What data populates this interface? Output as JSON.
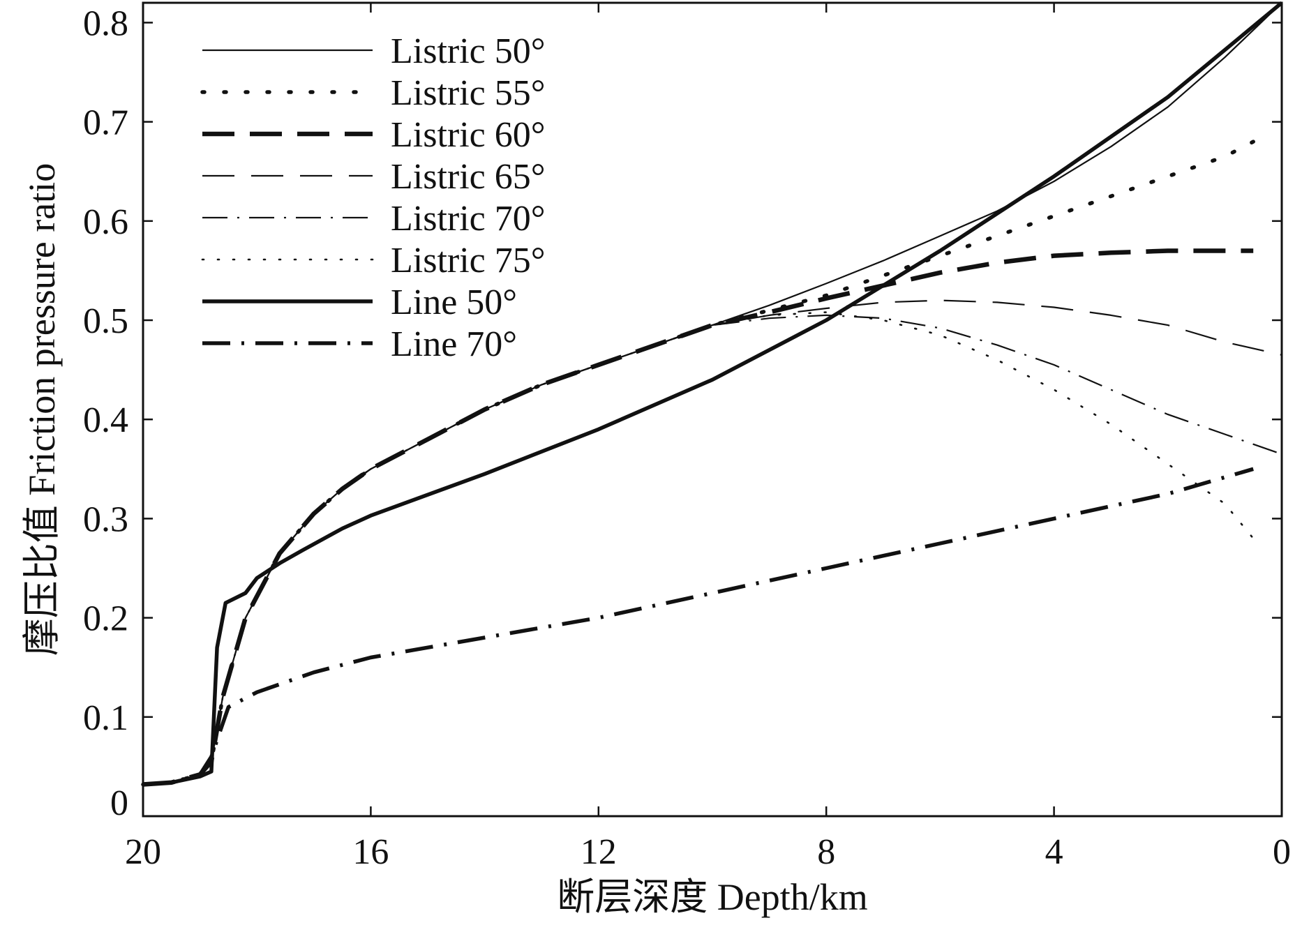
{
  "chart_data": {
    "type": "line",
    "xlabel": "断层深度 Depth/km",
    "ylabel": "摩压比值 Friction pressure ratio",
    "xlim": [
      20,
      0
    ],
    "ylim": [
      0,
      0.82
    ],
    "x_reversed": true,
    "grid": false,
    "legend_position": "top-left",
    "x_ticks": [
      20,
      16,
      12,
      8,
      4,
      0
    ],
    "x_tick_labels": [
      "20",
      "16",
      "12",
      "8",
      "4",
      "0"
    ],
    "y_ticks": [
      0,
      0.1,
      0.2,
      0.3,
      0.4,
      0.5,
      0.6,
      0.7,
      0.8
    ],
    "y_tick_labels": [
      "0",
      "0.1",
      "0.2",
      "0.3",
      "0.4",
      "0.5",
      "0.6",
      "0.7",
      "0.8"
    ],
    "series": [
      {
        "name": "Listric 50°",
        "style": "thin-solid",
        "x": [
          20,
          19.5,
          19.0,
          18.8,
          18.6,
          18.2,
          17.6,
          17.0,
          16.5,
          16.0,
          15.0,
          14.0,
          13.0,
          12.0,
          11.0,
          10.0,
          9.0,
          8.0,
          7.0,
          6.0,
          5.0,
          4.0,
          3.0,
          2.0,
          1.0,
          0.0
        ],
        "y": [
          0.032,
          0.034,
          0.042,
          0.055,
          0.12,
          0.2,
          0.265,
          0.305,
          0.33,
          0.35,
          0.38,
          0.41,
          0.435,
          0.455,
          0.475,
          0.495,
          0.515,
          0.537,
          0.56,
          0.585,
          0.61,
          0.64,
          0.675,
          0.715,
          0.765,
          0.82
        ]
      },
      {
        "name": "Listric 55°",
        "style": "dotted-bold",
        "x": [
          20,
          19.5,
          19.0,
          18.8,
          18.6,
          18.2,
          17.6,
          17.0,
          16.5,
          16.0,
          15.0,
          14.0,
          13.0,
          12.0,
          11.0,
          10.0,
          9.0,
          8.0,
          7.0,
          6.0,
          5.0,
          4.0,
          3.0,
          2.0,
          1.0,
          0.5
        ],
        "y": [
          0.032,
          0.034,
          0.042,
          0.055,
          0.12,
          0.2,
          0.265,
          0.305,
          0.33,
          0.35,
          0.38,
          0.41,
          0.435,
          0.455,
          0.475,
          0.495,
          0.51,
          0.525,
          0.545,
          0.565,
          0.585,
          0.605,
          0.625,
          0.645,
          0.665,
          0.68
        ]
      },
      {
        "name": "Listric 60°",
        "style": "dashed-bold",
        "x": [
          20,
          19.5,
          19.0,
          18.8,
          18.6,
          18.2,
          17.6,
          17.0,
          16.5,
          16.0,
          15.0,
          14.0,
          13.0,
          12.0,
          11.0,
          10.0,
          9.0,
          8.0,
          7.0,
          6.0,
          5.0,
          4.0,
          3.0,
          2.0,
          1.0,
          0.5
        ],
        "y": [
          0.032,
          0.034,
          0.042,
          0.055,
          0.12,
          0.2,
          0.265,
          0.305,
          0.33,
          0.35,
          0.38,
          0.41,
          0.435,
          0.455,
          0.475,
          0.495,
          0.508,
          0.522,
          0.535,
          0.548,
          0.558,
          0.565,
          0.568,
          0.57,
          0.57,
          0.57
        ]
      },
      {
        "name": "Listric 65°",
        "style": "dashed-thin",
        "x": [
          20,
          19.5,
          19.0,
          18.8,
          18.6,
          18.2,
          17.6,
          17.0,
          16.5,
          16.0,
          15.0,
          14.0,
          13.0,
          12.0,
          11.0,
          10.0,
          9.0,
          8.0,
          7.0,
          6.0,
          5.0,
          4.0,
          3.0,
          2.0,
          1.0,
          0.0
        ],
        "y": [
          0.032,
          0.034,
          0.042,
          0.055,
          0.12,
          0.2,
          0.265,
          0.305,
          0.33,
          0.35,
          0.38,
          0.41,
          0.435,
          0.455,
          0.475,
          0.495,
          0.505,
          0.512,
          0.518,
          0.52,
          0.518,
          0.513,
          0.505,
          0.495,
          0.478,
          0.465
        ]
      },
      {
        "name": "Listric 70°",
        "style": "dashdot-thin",
        "x": [
          20,
          19.5,
          19.0,
          18.8,
          18.6,
          18.2,
          17.6,
          17.0,
          16.5,
          16.0,
          15.0,
          14.0,
          13.0,
          12.0,
          11.0,
          10.0,
          9.0,
          8.0,
          7.0,
          6.0,
          5.0,
          4.0,
          3.0,
          2.0,
          1.0,
          0.0
        ],
        "y": [
          0.032,
          0.034,
          0.042,
          0.055,
          0.12,
          0.2,
          0.265,
          0.305,
          0.33,
          0.35,
          0.38,
          0.41,
          0.435,
          0.455,
          0.475,
          0.495,
          0.502,
          0.505,
          0.502,
          0.492,
          0.475,
          0.455,
          0.43,
          0.405,
          0.385,
          0.365
        ]
      },
      {
        "name": "Listric 75°",
        "style": "dotted-thin",
        "x": [
          20,
          19.5,
          19.0,
          18.8,
          18.6,
          18.2,
          17.6,
          17.0,
          16.5,
          16.0,
          15.0,
          14.0,
          13.0,
          12.0,
          11.0,
          10.0,
          9.0,
          8.0,
          7.0,
          6.0,
          5.0,
          4.0,
          3.0,
          2.0,
          1.0,
          0.5
        ],
        "y": [
          0.032,
          0.034,
          0.042,
          0.055,
          0.12,
          0.2,
          0.265,
          0.305,
          0.33,
          0.35,
          0.38,
          0.41,
          0.435,
          0.455,
          0.475,
          0.495,
          0.505,
          0.508,
          0.5,
          0.485,
          0.46,
          0.43,
          0.395,
          0.355,
          0.315,
          0.28
        ]
      },
      {
        "name": "Line 50°",
        "style": "thick-solid",
        "x": [
          20,
          19.5,
          19.0,
          18.8,
          18.7,
          18.55,
          18.2,
          18.0,
          17.6,
          17.2,
          16.5,
          16.0,
          14.0,
          12.0,
          10.0,
          8.0,
          6.0,
          4.0,
          2.0,
          0.0
        ],
        "y": [
          0.032,
          0.034,
          0.04,
          0.045,
          0.17,
          0.215,
          0.225,
          0.24,
          0.255,
          0.268,
          0.29,
          0.303,
          0.345,
          0.39,
          0.44,
          0.5,
          0.57,
          0.645,
          0.725,
          0.82
        ]
      },
      {
        "name": "Line 70°",
        "style": "dashdot-bold",
        "x": [
          20,
          19.5,
          19.0,
          18.8,
          18.5,
          18.0,
          17.0,
          16.0,
          14.0,
          12.0,
          10.0,
          8.0,
          6.0,
          4.0,
          2.0,
          0.5
        ],
        "y": [
          0.032,
          0.034,
          0.042,
          0.06,
          0.11,
          0.125,
          0.145,
          0.16,
          0.18,
          0.2,
          0.225,
          0.25,
          0.275,
          0.3,
          0.325,
          0.35
        ]
      }
    ]
  }
}
